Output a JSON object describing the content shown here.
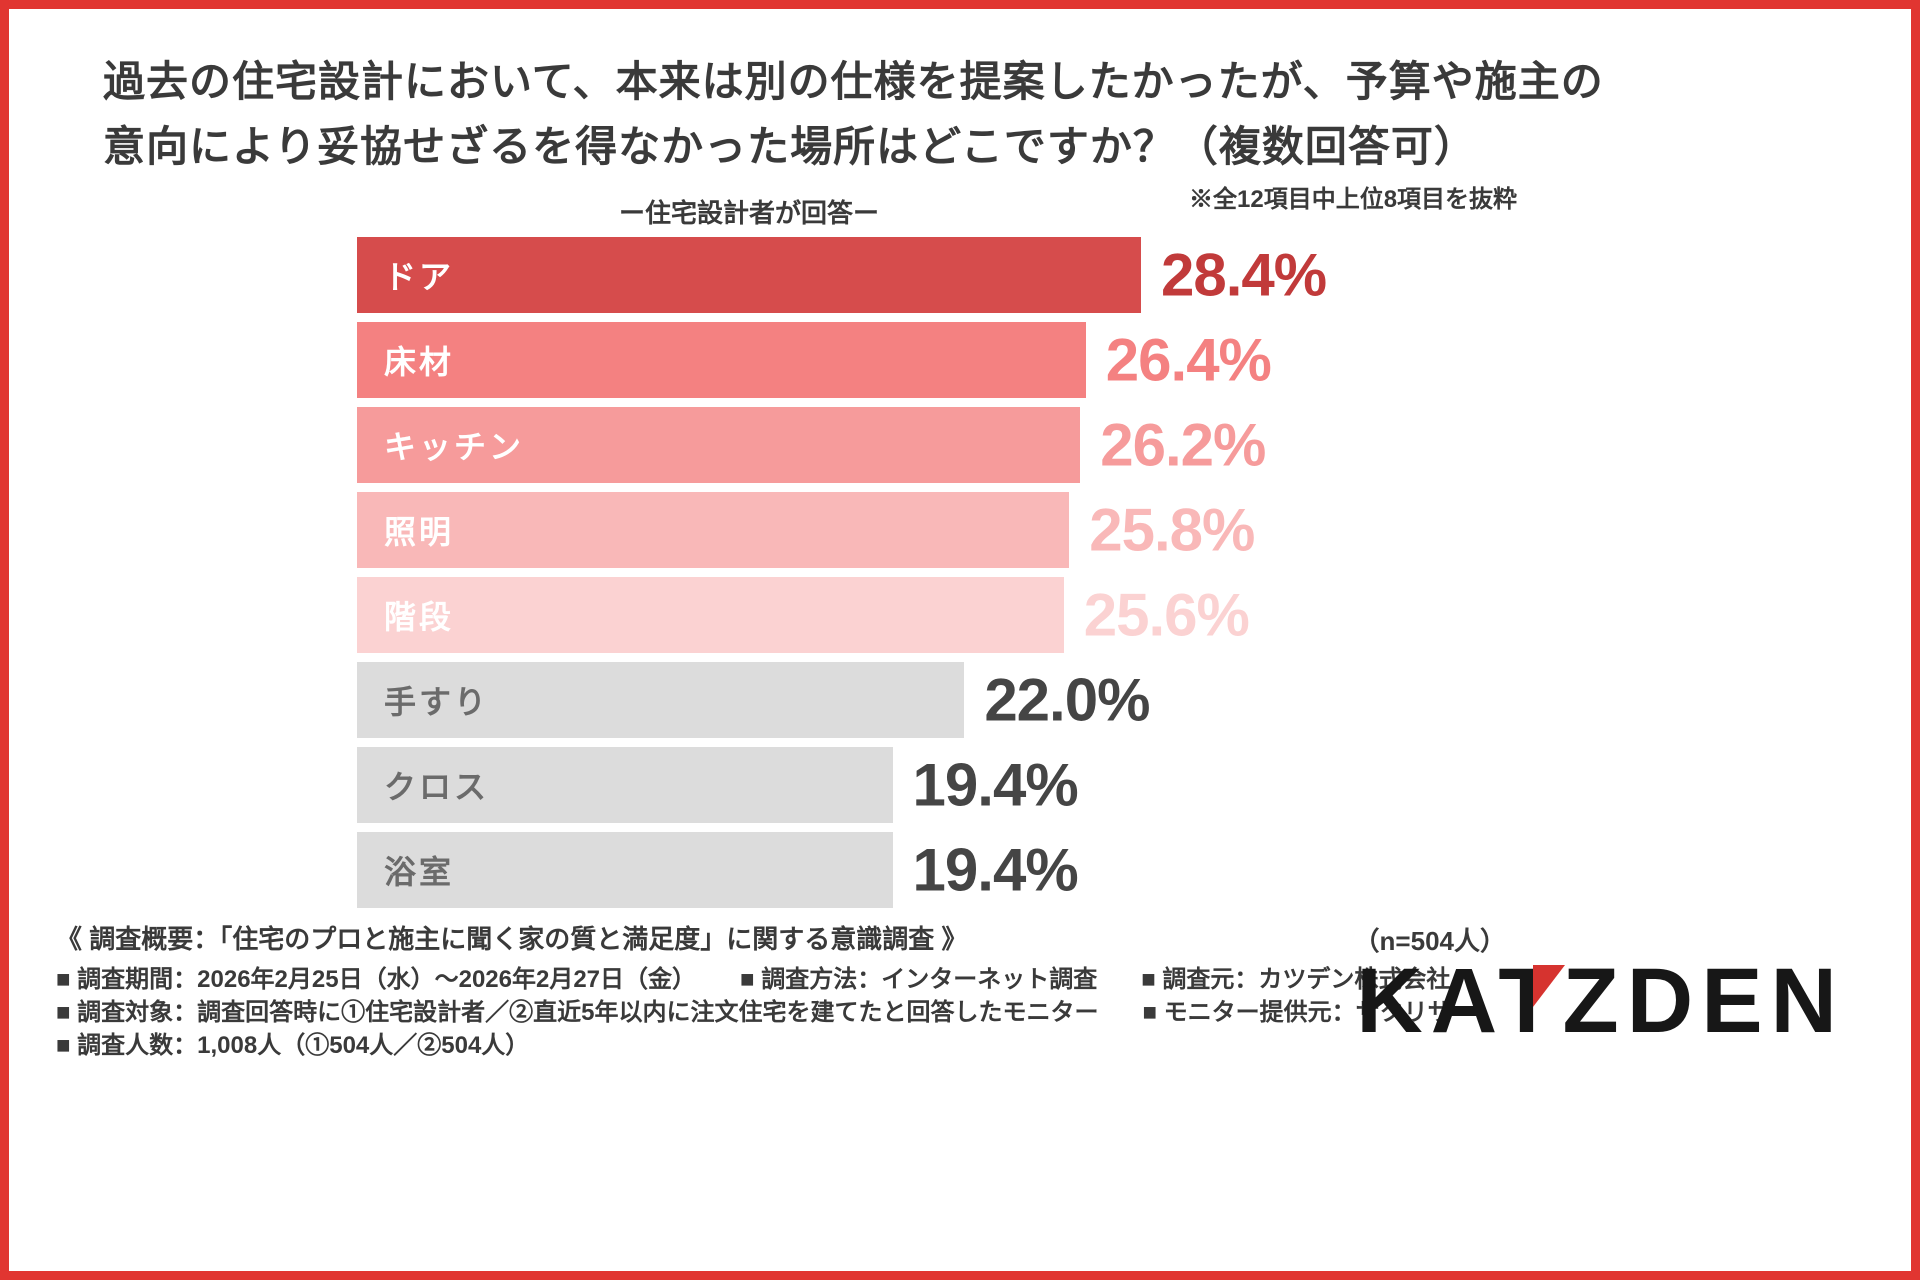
{
  "header": {
    "title_line1": "過去の住宅設計において、本来は別の仕様を提案したかったが、予算や施主の",
    "title_line2": "意向により妥協せざるを得なかった場所はどこですか？（複数回答可）",
    "subtitle": "ー住宅設計者が回答ー",
    "note": "※全12項目中上位8項目を抜粋"
  },
  "chart_data": {
    "type": "bar",
    "orientation": "horizontal",
    "title": "過去の住宅設計において、本来は別の仕様を提案したかったが、予算や施主の意向により妥協せざるを得なかった場所はどこですか？（複数回答可）",
    "subtitle": "ー住宅設計者が回答ー",
    "note": "※全12項目中上位8項目を抜粋",
    "categories": [
      "ドア",
      "床材",
      "キッチン",
      "照明",
      "階段",
      "手すり",
      "クロス",
      "浴室"
    ],
    "values": [
      28.4,
      26.4,
      26.2,
      25.8,
      25.6,
      22.0,
      19.4,
      19.4
    ],
    "value_labels": [
      "28.4%",
      "26.4%",
      "26.2%",
      "25.8%",
      "25.6%",
      "22.0%",
      "19.4%",
      "19.4%"
    ],
    "bar_colors": [
      "#d64c4c",
      "#f48181",
      "#f69b9b",
      "#f9b8b8",
      "#fbd2d2",
      "#dcdcdc",
      "#dcdcdc",
      "#dcdcdc"
    ],
    "label_colors": [
      "#ffffff",
      "#ffffff",
      "#ffffff",
      "#ffffff",
      "#ffffff",
      "#6b6b6b",
      "#6b6b6b",
      "#6b6b6b"
    ],
    "value_colors": [
      "#c13a3a",
      "#f48181",
      "#f69b9b",
      "#f9b8b8",
      "#fbd2d2",
      "#454545",
      "#454545",
      "#454545"
    ],
    "xmax": 28.4,
    "grid": false,
    "legend": false,
    "sample_note": "（n=504人）"
  },
  "footer": {
    "overview": "《 調査概要：「住宅のプロと施主に聞く家の質と満足度」に関する意識調査 》",
    "line1": [
      "■ 調査期間：2026年2月25日（水）〜2026年2月27日（金）",
      "■ 調査方法：インターネット調査",
      "■ 調査元：カツデン株式会社"
    ],
    "line2": [
      "■ 調査対象：調査回答時に①住宅設計者／②直近5年以内に注文住宅を建てたと回答したモニター",
      "■ モニター提供元：サクリサ"
    ],
    "line3": [
      "■ 調査人数：1,008人（①504人／②504人）"
    ],
    "logo": {
      "left": "KAT",
      "z": "Z",
      "right": "DEN"
    }
  }
}
